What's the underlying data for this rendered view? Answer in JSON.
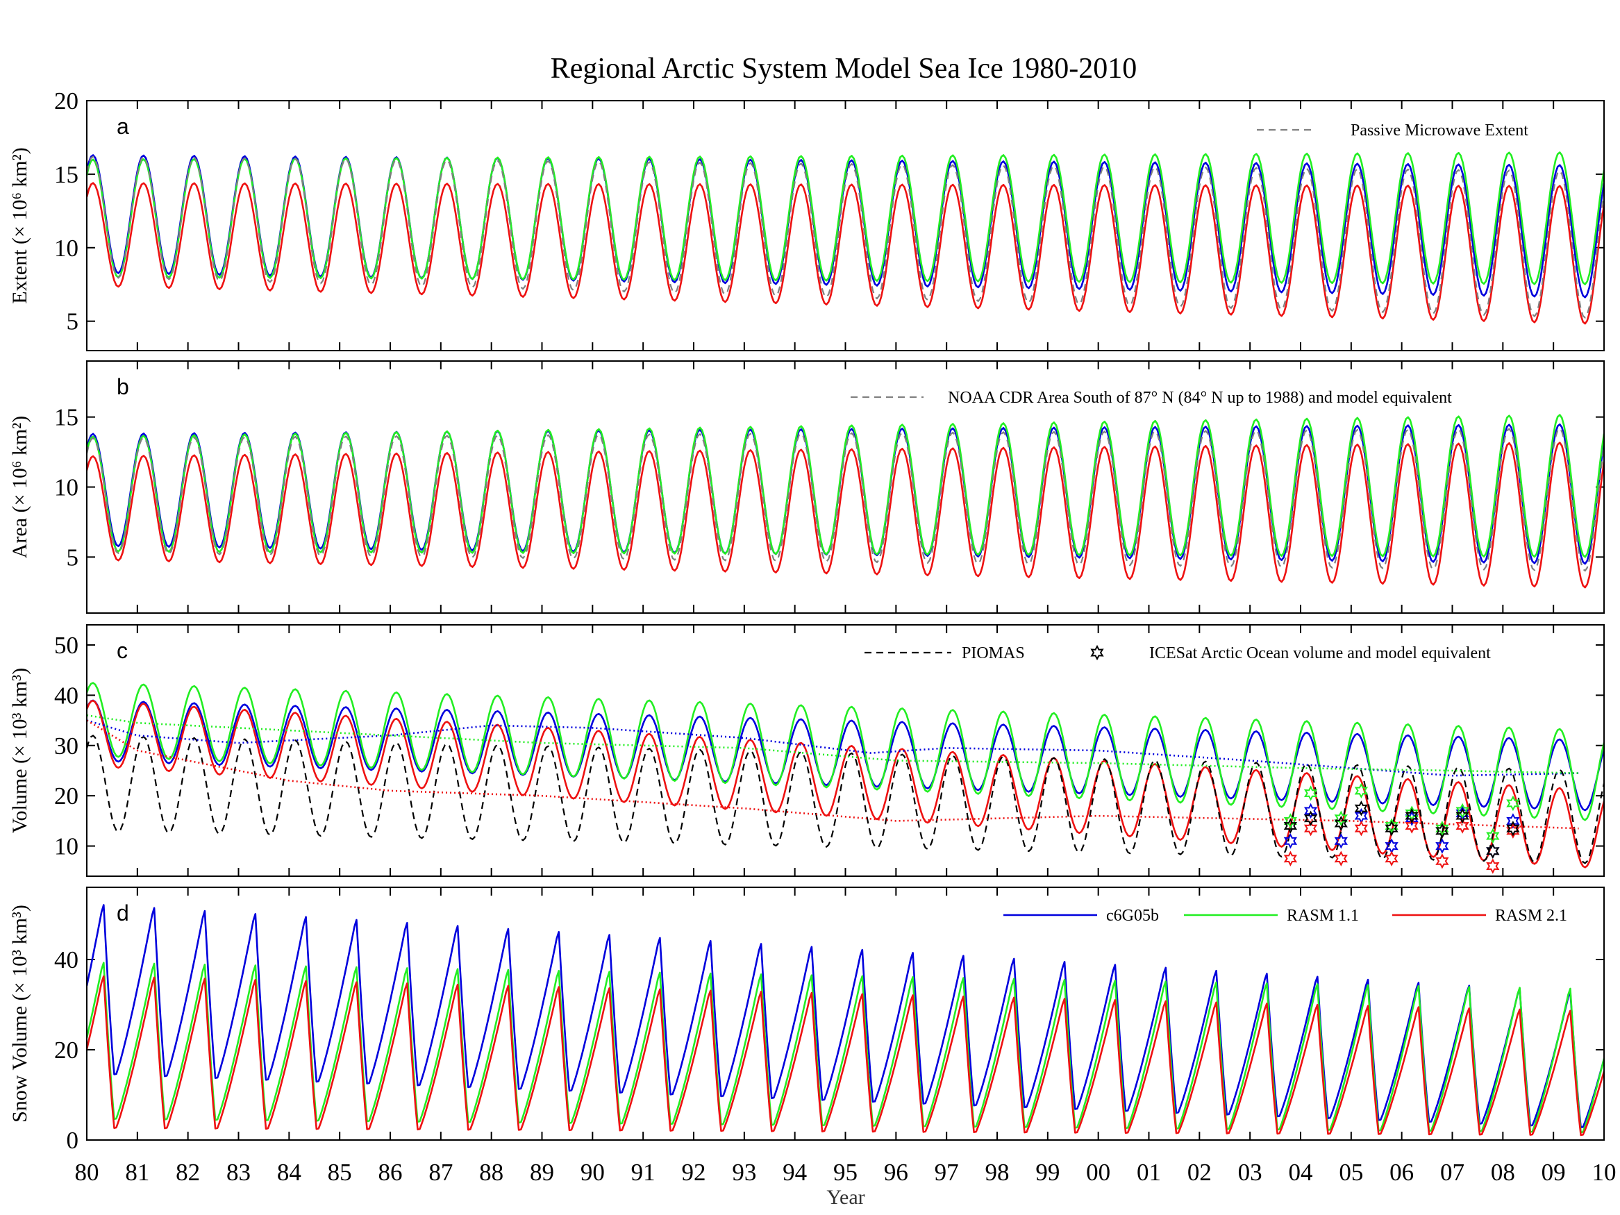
{
  "chart_data": {
    "type": "line",
    "title": "Regional Arctic System Model Sea Ice 1980-2010",
    "xlabel": "Year",
    "x_tick_labels": [
      "80",
      "81",
      "82",
      "83",
      "84",
      "85",
      "86",
      "87",
      "88",
      "89",
      "90",
      "91",
      "92",
      "93",
      "94",
      "95",
      "96",
      "97",
      "98",
      "99",
      "00",
      "01",
      "02",
      "03",
      "04",
      "05",
      "06",
      "07",
      "08",
      "09",
      "10"
    ],
    "xlim": [
      1980,
      2010
    ],
    "series_colors": {
      "c6G05b": "#0000dd",
      "RASM 1.1": "#22ee22",
      "RASM 2.1": "#ee1111",
      "obs_gray": "#808080",
      "obs_black": "#000000"
    },
    "panels": [
      {
        "letter": "a",
        "ylabel": "Extent (× 10⁶ km²)",
        "ylim": [
          3,
          20
        ],
        "yticks": [
          5,
          10,
          15,
          20
        ],
        "legend": [
          {
            "label": "Passive Microwave Extent",
            "style": "dashed-gray"
          }
        ],
        "seasonal": {
          "c6G05b": {
            "max_start": 16.3,
            "max_end": 15.6,
            "min_start": 8.3,
            "min_end": 6.6
          },
          "RASM 1.1": {
            "max_start": 16.0,
            "max_end": 16.5,
            "min_start": 8.0,
            "min_end": 7.5
          },
          "RASM 2.1": {
            "max_start": 14.4,
            "max_end": 14.2,
            "min_start": 7.4,
            "min_end": 4.8
          },
          "Passive Microwave Extent": {
            "max_start": 16.2,
            "max_end": 15.2,
            "min_start": 8.0,
            "min_end": 5.2
          }
        }
      },
      {
        "letter": "b",
        "ylabel": "Area (× 10⁶ km²)",
        "ylim": [
          1,
          19
        ],
        "yticks": [
          5,
          10,
          15
        ],
        "legend": [
          {
            "label": "NOAA CDR Area South of 87° N (84° N up to 1988) and model equivalent",
            "style": "dashed-gray"
          }
        ],
        "seasonal": {
          "c6G05b": {
            "max_start": 13.8,
            "max_end": 14.5,
            "min_start": 5.8,
            "min_end": 4.5
          },
          "RASM 1.1": {
            "max_start": 13.6,
            "max_end": 15.2,
            "min_start": 5.4,
            "min_end": 5.0
          },
          "RASM 2.1": {
            "max_start": 12.2,
            "max_end": 13.2,
            "min_start": 4.8,
            "min_end": 2.8
          },
          "NOAA CDR Area": {
            "max_start": 13.5,
            "max_end": 14.2,
            "min_start": 5.3,
            "min_end": 4.0
          }
        }
      },
      {
        "letter": "c",
        "ylabel": "Volume (× 10³ km³)",
        "ylim": [
          4,
          54
        ],
        "yticks": [
          10,
          20,
          30,
          40,
          50
        ],
        "legend": [
          {
            "label": "PIOMAS",
            "style": "dashed-black"
          },
          {
            "label": "ICESat Arctic Ocean volume and model equivalent",
            "style": "star-black"
          }
        ],
        "seasonal": {
          "c6G05b": {
            "max_start": 39.0,
            "max_end": 31.0,
            "min_start": 27.0,
            "min_end": 17.0
          },
          "RASM 1.1": {
            "max_start": 42.5,
            "max_end": 33.0,
            "min_start": 28.0,
            "min_end": 15.0
          },
          "RASM 2.1": {
            "max_start": 39.0,
            "max_end": 21.0,
            "min_start": 26.0,
            "min_end": 5.5
          },
          "PIOMAS": {
            "max_start": 32.0,
            "max_end": 25.0,
            "min_start": 13.0,
            "min_end": 6.5
          }
        },
        "trend_lines": {
          "c6G05b": [
            [
              1980.0,
              35.0
            ],
            [
              1981.0,
              32.0
            ],
            [
              1983.0,
              30.5
            ],
            [
              1986.0,
              32.0
            ],
            [
              1988.0,
              34.0
            ],
            [
              1990.0,
              33.5
            ],
            [
              1993.0,
              31.5
            ],
            [
              1995.5,
              28.5
            ],
            [
              1997.0,
              29.5
            ],
            [
              2000.0,
              29.0
            ],
            [
              2003.0,
              27.0
            ],
            [
              2007.0,
              24.0
            ],
            [
              2009.5,
              24.5
            ]
          ],
          "RASM 1.1": [
            [
              1980.0,
              36.0
            ],
            [
              1981.0,
              34.5
            ],
            [
              1984.0,
              33.0
            ],
            [
              1987.0,
              31.5
            ],
            [
              1989.0,
              30.5
            ],
            [
              1993.0,
              29.5
            ],
            [
              1996.0,
              27.0
            ],
            [
              2000.0,
              26.5
            ],
            [
              2004.0,
              25.5
            ],
            [
              2007.0,
              25.0
            ],
            [
              2009.5,
              24.5
            ]
          ],
          "RASM 2.1": [
            [
              1980.0,
              35.0
            ],
            [
              1981.0,
              29.0
            ],
            [
              1984.0,
              23.0
            ],
            [
              1986.0,
              21.0
            ],
            [
              1989.0,
              20.0
            ],
            [
              1993.0,
              17.5
            ],
            [
              1996.0,
              15.0
            ],
            [
              2000.0,
              16.0
            ],
            [
              2005.0,
              15.0
            ],
            [
              2009.5,
              13.5
            ]
          ]
        },
        "icesat_points": {
          "c6G05b": [
            [
              2003.8,
              11.0
            ],
            [
              2004.2,
              17.0
            ],
            [
              2004.8,
              11.0
            ],
            [
              2005.2,
              16.0
            ],
            [
              2005.8,
              10.0
            ],
            [
              2006.2,
              15.5
            ],
            [
              2006.8,
              10.0
            ],
            [
              2007.2,
              16.5
            ],
            [
              2007.8,
              9.0
            ],
            [
              2008.2,
              15.0
            ]
          ],
          "RASM 1.1": [
            [
              2003.8,
              15.0
            ],
            [
              2004.2,
              20.5
            ],
            [
              2004.8,
              15.5
            ],
            [
              2005.2,
              21.0
            ],
            [
              2005.8,
              14.0
            ],
            [
              2006.2,
              16.5
            ],
            [
              2006.8,
              13.5
            ],
            [
              2007.2,
              17.0
            ],
            [
              2007.8,
              12.0
            ],
            [
              2008.2,
              18.5
            ]
          ],
          "RASM 2.1": [
            [
              2003.8,
              7.5
            ],
            [
              2004.2,
              13.5
            ],
            [
              2004.8,
              7.5
            ],
            [
              2005.2,
              13.5
            ],
            [
              2005.8,
              7.5
            ],
            [
              2006.2,
              14.0
            ],
            [
              2006.8,
              7.0
            ],
            [
              2007.2,
              14.0
            ],
            [
              2007.8,
              6.0
            ],
            [
              2008.2,
              13.0
            ]
          ],
          "ICESat": [
            [
              2003.8,
              14.0
            ],
            [
              2004.2,
              15.5
            ],
            [
              2004.8,
              14.5
            ],
            [
              2005.2,
              17.5
            ],
            [
              2005.8,
              13.5
            ],
            [
              2006.2,
              16.0
            ],
            [
              2006.8,
              13.0
            ],
            [
              2007.2,
              16.0
            ],
            [
              2007.8,
              9.0
            ],
            [
              2008.2,
              13.5
            ]
          ]
        }
      },
      {
        "letter": "d",
        "ylabel": "Snow Volume (× 10³ km³)",
        "ylim": [
          0,
          56
        ],
        "yticks": [
          0,
          20,
          40
        ],
        "legend": [
          {
            "label": "c6G05b",
            "style": "solid-blue"
          },
          {
            "label": "RASM 1.1",
            "style": "solid-green"
          },
          {
            "label": "RASM 2.1",
            "style": "solid-red"
          }
        ],
        "seasonal": {
          "c6G05b": {
            "max_start": 53.0,
            "max_end": 33.0,
            "min_start": 14.0,
            "min_end": 2.0
          },
          "RASM 1.1": {
            "max_start": 40.0,
            "max_end": 34.0,
            "min_start": 4.0,
            "min_end": 1.0
          },
          "RASM 2.1": {
            "max_start": 37.0,
            "max_end": 29.0,
            "min_start": 2.0,
            "min_end": 0.5
          }
        }
      }
    ]
  }
}
